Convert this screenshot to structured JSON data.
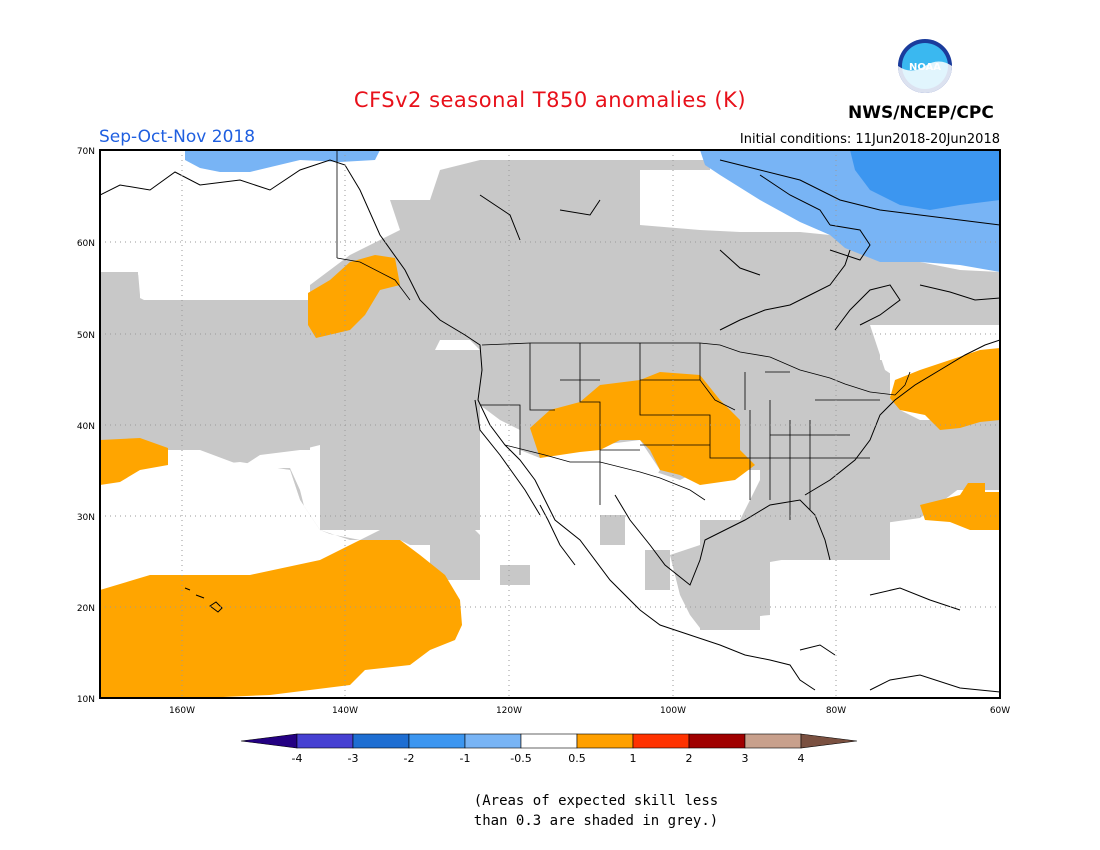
{
  "header": {
    "title": "CFSv2 seasonal T850 anomalies (K)",
    "season": "Sep-Oct-Nov 2018",
    "initial_conditions": "Initial conditions: 11Jun2018-20Jun2018",
    "agency": "NWS/NCEP/CPC",
    "logo_text": "NOAA"
  },
  "map": {
    "lat_labels": [
      "70N",
      "60N",
      "50N",
      "40N",
      "30N",
      "20N",
      "10N"
    ],
    "lon_labels": [
      "160W",
      "140W",
      "120W",
      "100W",
      "80W",
      "60W"
    ],
    "colors": {
      "skill_grey": "#c8c8c8",
      "warm_orange": "#ffa500",
      "cool_light_blue": "#78b4f5",
      "cool_mid_blue": "#3c96f0",
      "ocean_white": "#ffffff"
    }
  },
  "colorbar": {
    "labels": [
      "-4",
      "-3",
      "-2",
      "-1",
      "-0.5",
      "0.5",
      "1",
      "2",
      "3",
      "4"
    ],
    "colors": [
      "#240082",
      "#4640d2",
      "#1e6ed2",
      "#3c96f0",
      "#78b4f5",
      "#ffffff",
      "#ffa000",
      "#ff3200",
      "#a00000",
      "#c8a08c",
      "#7a5040"
    ]
  },
  "footnote": {
    "line1": "(Areas of expected skill less",
    "line2": "than 0.3 are shaded in grey.)"
  }
}
